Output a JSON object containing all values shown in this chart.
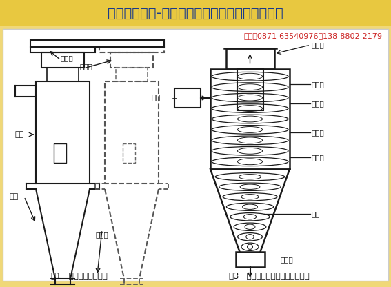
{
  "title": "昆明滇重矿机-旋风除尘器结构及工作原理示意图",
  "title_bg": "#e8c840",
  "title_color": "#1a3a8a",
  "contact": "详询：0871-63540976、138-8802-2179",
  "contact_color": "#cc2222",
  "bg_color": "#f0d878",
  "diagram_bg": "#ffffff",
  "line_color": "#1a1a1a",
  "fig1_caption": "图1   旋风分离器的结构",
  "fig3_caption": "图3   旋风分离器的内部流场示意图"
}
